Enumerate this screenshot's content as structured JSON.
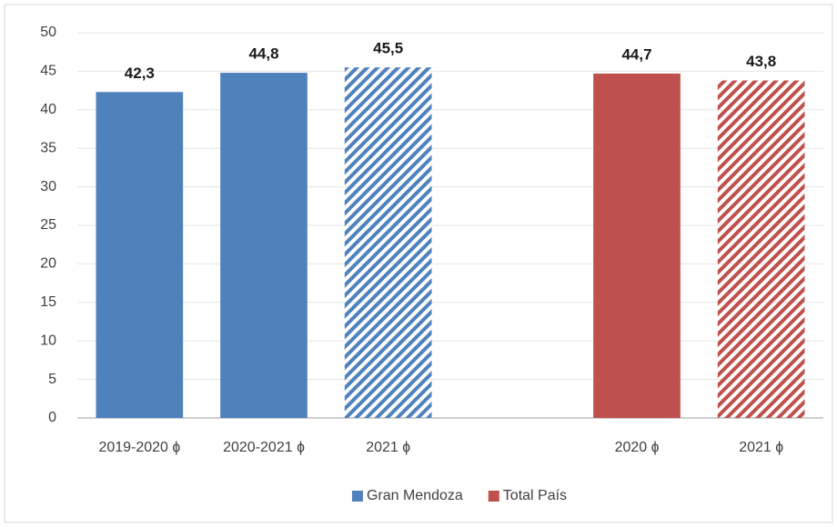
{
  "chart_data": {
    "type": "bar",
    "categories": [
      "2019-2020 ɸ",
      "2020-2021 ɸ",
      "2021 ɸ",
      null,
      "2020 ɸ",
      "2021 ɸ"
    ],
    "series": [
      {
        "name": "Gran Mendoza",
        "color": "#4f81bd",
        "values": [
          42.3,
          44.8,
          45.5,
          null,
          null,
          null
        ],
        "value_labels": [
          "42,3",
          "44,8",
          "45,5",
          null,
          null,
          null
        ],
        "styles": [
          "solid",
          "solid",
          "hatched",
          null,
          null,
          null
        ]
      },
      {
        "name": "Total País",
        "color": "#c0504d",
        "values": [
          null,
          null,
          null,
          null,
          44.7,
          43.8
        ],
        "value_labels": [
          null,
          null,
          null,
          null,
          "44,7",
          "43,8"
        ],
        "styles": [
          null,
          null,
          null,
          null,
          "solid",
          "hatched"
        ]
      }
    ],
    "ylim": [
      0,
      50
    ],
    "yticks": [
      0,
      5,
      10,
      15,
      20,
      25,
      30,
      35,
      40,
      45,
      50
    ],
    "grid": true,
    "legend": "bottom"
  }
}
